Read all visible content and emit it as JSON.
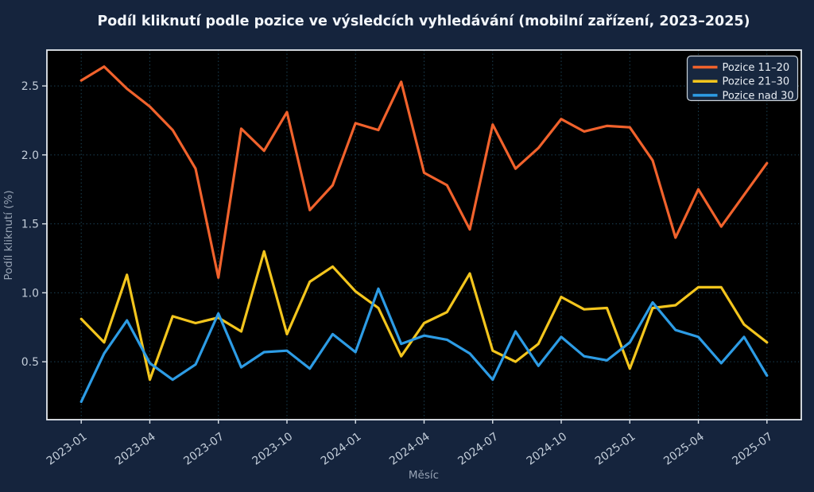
{
  "figure": {
    "title": "Podíl kliknutí podle pozice ve výsledcích vyhledávání (mobilní zařízení, 2023–2025)"
  },
  "chart_data": {
    "type": "line",
    "title": "Podíl kliknutí podle pozice ve výsledcích vyhledávání (mobilní zařízení, 2023–2025)",
    "xlabel": "Měsíc",
    "ylabel": "Podíl kliknutí (%)",
    "x": [
      "2023-01",
      "2023-02",
      "2023-03",
      "2023-04",
      "2023-05",
      "2023-06",
      "2023-07",
      "2023-08",
      "2023-09",
      "2023-10",
      "2023-11",
      "2023-12",
      "2024-01",
      "2024-02",
      "2024-03",
      "2024-04",
      "2024-05",
      "2024-06",
      "2024-07",
      "2024-08",
      "2024-09",
      "2024-10",
      "2024-11",
      "2024-12",
      "2025-01",
      "2025-02",
      "2025-03",
      "2025-04",
      "2025-05",
      "2025-06",
      "2025-07"
    ],
    "x_tick_step": 3,
    "y_ticks": [
      0.5,
      1.0,
      1.5,
      2.0,
      2.5
    ],
    "ylim": [
      0.08,
      2.76
    ],
    "grid": true,
    "legend_position": "upper right",
    "series": [
      {
        "name": "Pozice 11–20",
        "color": "#F1622C",
        "values": [
          2.54,
          2.64,
          2.48,
          2.35,
          2.18,
          1.9,
          1.11,
          2.19,
          2.03,
          2.31,
          1.6,
          1.78,
          2.23,
          2.18,
          2.53,
          1.87,
          1.78,
          1.46,
          2.22,
          1.9,
          2.05,
          2.26,
          2.17,
          2.21,
          2.2,
          1.96,
          1.4,
          1.75,
          1.48,
          1.71,
          1.94
        ]
      },
      {
        "name": "Pozice 21–30",
        "color": "#F3C51D",
        "values": [
          0.81,
          0.64,
          1.13,
          0.37,
          0.83,
          0.78,
          0.82,
          0.72,
          1.3,
          0.7,
          1.08,
          1.19,
          1.01,
          0.89,
          0.54,
          0.78,
          0.86,
          1.14,
          0.58,
          0.5,
          0.63,
          0.97,
          0.88,
          0.89,
          0.45,
          0.89,
          0.91,
          1.04,
          1.04,
          0.77,
          0.64
        ]
      },
      {
        "name": "Pozice nad 30",
        "color": "#2D9CE5",
        "values": [
          0.21,
          0.56,
          0.8,
          0.49,
          0.37,
          0.48,
          0.85,
          0.46,
          0.57,
          0.58,
          0.45,
          0.7,
          0.57,
          1.03,
          0.63,
          0.69,
          0.66,
          0.56,
          0.37,
          0.72,
          0.47,
          0.68,
          0.54,
          0.51,
          0.64,
          0.93,
          0.73,
          0.68,
          0.49,
          0.68,
          0.4
        ]
      }
    ],
    "colors": {
      "background": "#15243D",
      "plot_background": "#000000",
      "grid": "#1B4154",
      "spine": "#E5EAF0",
      "tick": "#DBE2EA",
      "tick_label": "#C3CDD9",
      "axis_label": "#97A3B4",
      "title": "#F2F6FB",
      "legend_background": "#17273F",
      "legend_border": "#C9D2DA",
      "legend_text": "#E9EEF4"
    }
  }
}
